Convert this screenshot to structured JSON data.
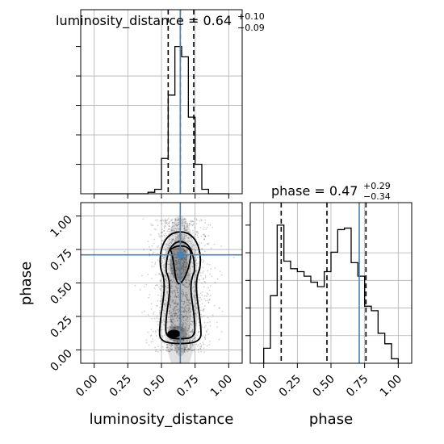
{
  "chart_data": {
    "type": "corner",
    "parameters": [
      "luminosity_distance",
      "phase"
    ],
    "titles": {
      "luminosity_distance": {
        "prefix": "luminosity_distance = ",
        "median": "0.64",
        "plus": "+0.10",
        "minus": "−0.09"
      },
      "phase": {
        "prefix": "phase = ",
        "median": "0.47",
        "plus": "+0.29",
        "minus": "−0.34"
      }
    },
    "axis_labels": {
      "x_left": "luminosity_distance",
      "x_right": "phase",
      "y_bottom": "phase"
    },
    "tick_labels": [
      "0.00",
      "0.25",
      "0.50",
      "0.75",
      "1.00"
    ],
    "tick_values": [
      0.0,
      0.25,
      0.5,
      0.75,
      1.0
    ],
    "xlim": [
      -0.1,
      1.1
    ],
    "ylim": [
      -0.1,
      1.1
    ],
    "grid": true,
    "truth": {
      "luminosity_distance": 0.64,
      "phase": 0.71
    },
    "truth_color": "#4682b4",
    "quantiles": {
      "luminosity_distance": [
        0.55,
        0.64,
        0.74
      ],
      "phase": [
        0.13,
        0.47,
        0.76
      ]
    },
    "histogram_luminosity_distance": {
      "bin_edges": [
        0.0,
        0.05,
        0.1,
        0.15,
        0.2,
        0.25,
        0.3,
        0.35,
        0.4,
        0.45,
        0.5,
        0.55,
        0.6,
        0.65,
        0.7,
        0.75,
        0.8,
        0.85,
        0.9,
        0.95,
        1.0
      ],
      "counts": [
        0,
        0,
        0,
        0,
        0,
        0,
        0,
        0,
        1,
        3,
        24,
        67,
        100,
        93,
        52,
        20,
        3,
        0,
        0,
        0
      ]
    },
    "histogram_phase": {
      "bin_edges": [
        0.0,
        0.05,
        0.1,
        0.15,
        0.2,
        0.25,
        0.3,
        0.35,
        0.4,
        0.45,
        0.5,
        0.55,
        0.6,
        0.65,
        0.7,
        0.75,
        0.8,
        0.85,
        0.9,
        0.95,
        1.0
      ],
      "counts": [
        10,
        45,
        92,
        68,
        63,
        61,
        58,
        54,
        51,
        61,
        74,
        89,
        90,
        67,
        58,
        38,
        35,
        20,
        13,
        3
      ]
    },
    "density_2d": {
      "x_center": 0.64,
      "lobes": [
        {
          "y": 0.7,
          "weight": 1.0
        },
        {
          "y": 0.12,
          "weight": 1.0
        }
      ],
      "contour_levels": 3,
      "density_color": "#000000"
    }
  }
}
